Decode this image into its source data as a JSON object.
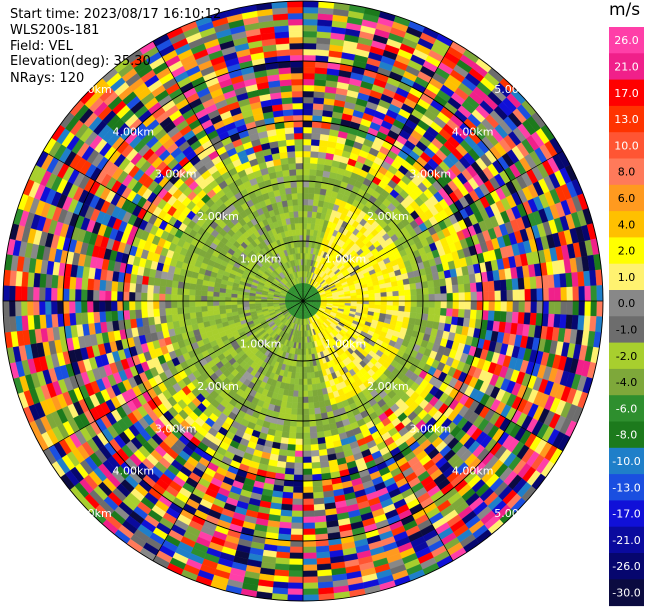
{
  "header": {
    "start_time": "Start time: 2023/08/17 16:10:12",
    "station": "WLS200s-181",
    "field": "Field: VEL",
    "elevation": "Elevation(deg): 35.30",
    "nrays": "NRays: 120"
  },
  "range_labels": [
    "1.00km",
    "2.00km",
    "3.00km",
    "4.00km",
    "5.00km"
  ],
  "colorbar": {
    "unit": "m/s",
    "ticks": [
      "26.0",
      "21.0",
      "17.0",
      "13.0",
      "10.0",
      "8.0",
      "6.0",
      "4.0",
      "2.0",
      "1.0",
      "0.0",
      "-1.0",
      "-2.0",
      "-4.0",
      "-6.0",
      "-8.0",
      "-10.0",
      "-13.0",
      "-17.0",
      "-21.0",
      "-26.0",
      "-30.0"
    ],
    "colors": [
      "#ff3fa8",
      "#f0208a",
      "#ff0000",
      "#ff3300",
      "#ff5533",
      "#ff7a5a",
      "#ff9a1f",
      "#ffc000",
      "#ffff00",
      "#fff270",
      "#888888",
      "#6d6d6d",
      "#a8cf2e",
      "#7ea83a",
      "#2e8f2e",
      "#1c7a1c",
      "#1f7fc9",
      "#1a4fe0",
      "#1010d8",
      "#0a0a9e",
      "#06066e",
      "#0b0b40"
    ]
  }
}
